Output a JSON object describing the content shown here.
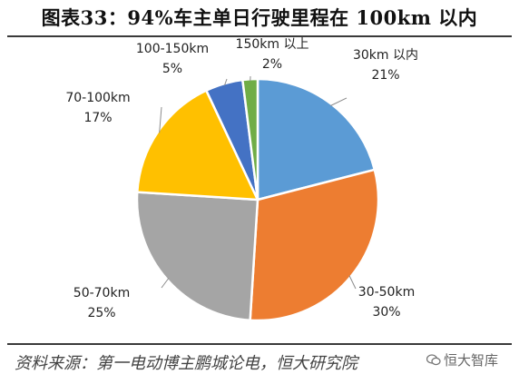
{
  "header": {
    "title": "图表33：94%车主单日行驶里程在 100km 以内"
  },
  "chart_data": {
    "type": "pie",
    "slices": [
      {
        "label": "30km 以内",
        "value": 21,
        "value_label": "21%",
        "color": "#5B9BD5"
      },
      {
        "label": "30-50km",
        "value": 30,
        "value_label": "30%",
        "color": "#ED7D31"
      },
      {
        "label": "50-70km",
        "value": 25,
        "value_label": "25%",
        "color": "#A5A5A5"
      },
      {
        "label": "70-100km",
        "value": 17,
        "value_label": "17%",
        "color": "#FFC000"
      },
      {
        "label": "100-150km",
        "value": 5,
        "value_label": "5%",
        "color": "#4472C4"
      },
      {
        "label": "150km 以上",
        "value": 2,
        "value_label": "2%",
        "color": "#70AD47"
      }
    ]
  },
  "footer": {
    "source": "资料来源：第一电动博主鹏城论电，恒大研究院",
    "watermark": "恒大智库",
    "watermark_icon": "wechat-icon"
  }
}
